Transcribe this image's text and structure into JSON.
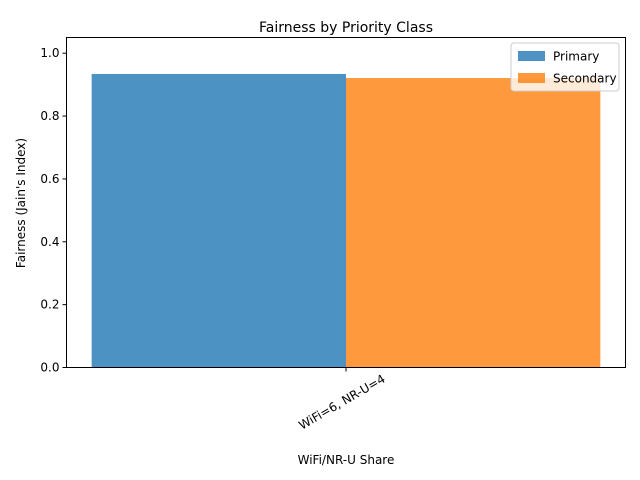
{
  "chart_data": {
    "type": "bar",
    "title": "Fairness by Priority Class",
    "xlabel": "WiFi/NR-U Share",
    "ylabel": "Fairness (Jain's Index)",
    "categories": [
      "WiFi=6, NR-U=4"
    ],
    "series": [
      {
        "name": "Primary",
        "values": [
          0.934
        ],
        "color": "#1f77b4"
      },
      {
        "name": "Secondary",
        "values": [
          0.921
        ],
        "color": "#ff7f0e"
      }
    ],
    "ylim": [
      0,
      1.05
    ],
    "yticks": [
      "0.0",
      "0.2",
      "0.4",
      "0.6",
      "0.8",
      "1.0"
    ],
    "ytick_values": [
      0,
      0.2,
      0.4,
      0.6,
      0.8,
      1.0
    ],
    "bar_opacity": 0.8,
    "grid": false,
    "legend_position": "top-right"
  }
}
